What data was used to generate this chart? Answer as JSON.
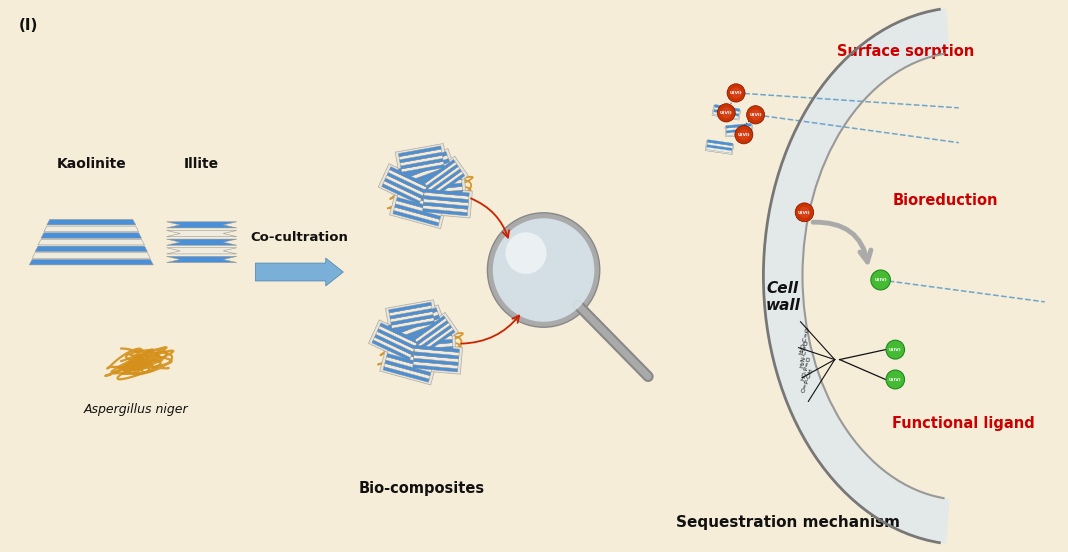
{
  "bg_color": "#f5edd8",
  "title_label": "(I)",
  "kaolinite_label": "Kaolinite",
  "illite_label": "Illite",
  "aspergillus_label": "Aspergillus niger",
  "co_cultration_label": "Co-cultration",
  "bio_composites_label": "Bio-composites",
  "sequestration_label": "Sequestration mechanism",
  "cell_wall_label": "Cell\nwall",
  "surface_sorption_label": "Surface sorption",
  "bioreduction_label": "Bioreduction",
  "functional_ligand_label": "Functional ligand",
  "blue_color": "#4a90d9",
  "blue_light": "#7fb8e8",
  "white_layer": "#f0ede0",
  "orange_color": "#d4901a",
  "red_ball_outer": "#cc3300",
  "red_ball_inner": "#e05030",
  "green_ball_outer": "#228822",
  "green_ball_inner": "#44bb33",
  "arrow_blue": "#5599cc",
  "arrow_gray": "#aaaaaa",
  "red_text": "#cc0000",
  "dark_text": "#111111",
  "cell_wall_fill": "#ddeeff"
}
